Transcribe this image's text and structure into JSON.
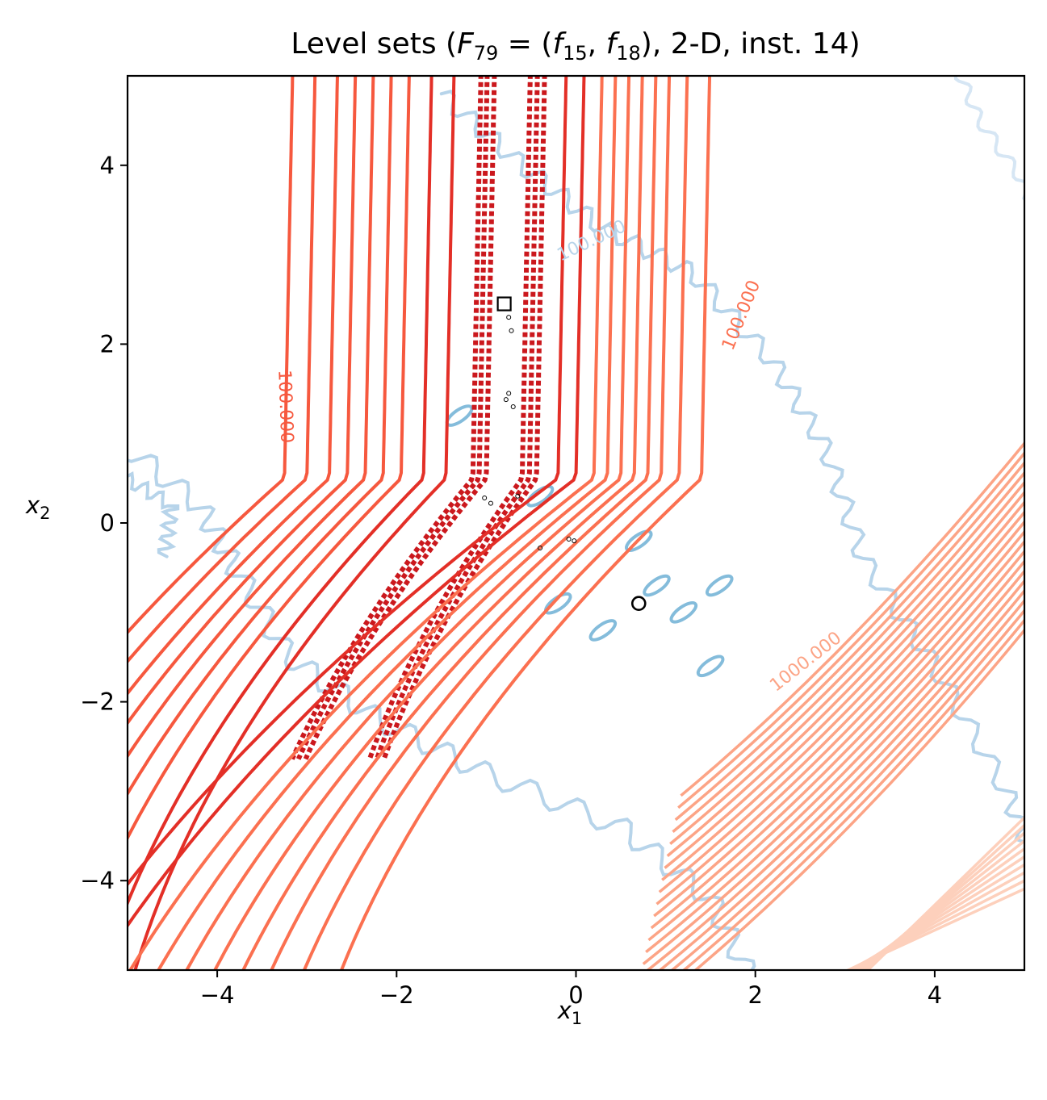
{
  "chart_data": {
    "type": "contour",
    "title": "Level sets (F79 = (f15, f18), 2-D, inst. 14)",
    "title_parts": {
      "prefix": "Level sets (",
      "F": "F",
      "F_sub": "79",
      "eq": " = (",
      "f1": "f",
      "f1_sub": "15",
      "comma": ", ",
      "f2": "f",
      "f2_sub": "18",
      "suffix": "), 2-D, inst. 14)"
    },
    "xlabel": {
      "base": "x",
      "sub": "1"
    },
    "ylabel": {
      "base": "x",
      "sub": "2"
    },
    "xlim": [
      -5,
      5
    ],
    "ylim": [
      -5,
      5
    ],
    "xticks": [
      -4,
      -2,
      0,
      2,
      4
    ],
    "yticks": [
      -4,
      -2,
      0,
      2,
      4
    ],
    "xtick_labels": [
      "−4",
      "−2",
      "0",
      "2",
      "4"
    ],
    "ytick_labels": [
      "−4",
      "−2",
      "0",
      "2",
      "4"
    ],
    "grid": false,
    "contour_labels": [
      "100.000",
      "1000.000",
      "100.000",
      "100.000"
    ],
    "colors": {
      "red_dark": "#cb181d",
      "red_mid": "#e32f27",
      "red": "#f6583e",
      "salmon": "#fb7050",
      "light_salmon": "#fca486",
      "pale": "#fdd0bc",
      "blue_light": "#b7d4ea",
      "blue_mid": "#84bcdb",
      "blue_pale": "#d6e6f4"
    },
    "markers": {
      "square_optimum_f1": {
        "x": -0.8,
        "y": 2.45
      },
      "circle_optimum_f2": {
        "x": 0.7,
        "y": -0.9
      }
    },
    "pareto_points": [
      {
        "x": -0.75,
        "y": 2.3
      },
      {
        "x": -0.72,
        "y": 2.15
      },
      {
        "x": -0.75,
        "y": 1.45
      },
      {
        "x": -0.78,
        "y": 1.38
      },
      {
        "x": -0.7,
        "y": 1.3
      },
      {
        "x": -1.02,
        "y": 0.28
      },
      {
        "x": -0.95,
        "y": 0.22
      },
      {
        "x": -0.65,
        "y": 0.3
      },
      {
        "x": -0.4,
        "y": -0.28
      },
      {
        "x": -0.08,
        "y": -0.18
      },
      {
        "x": -0.02,
        "y": -0.2
      }
    ]
  }
}
